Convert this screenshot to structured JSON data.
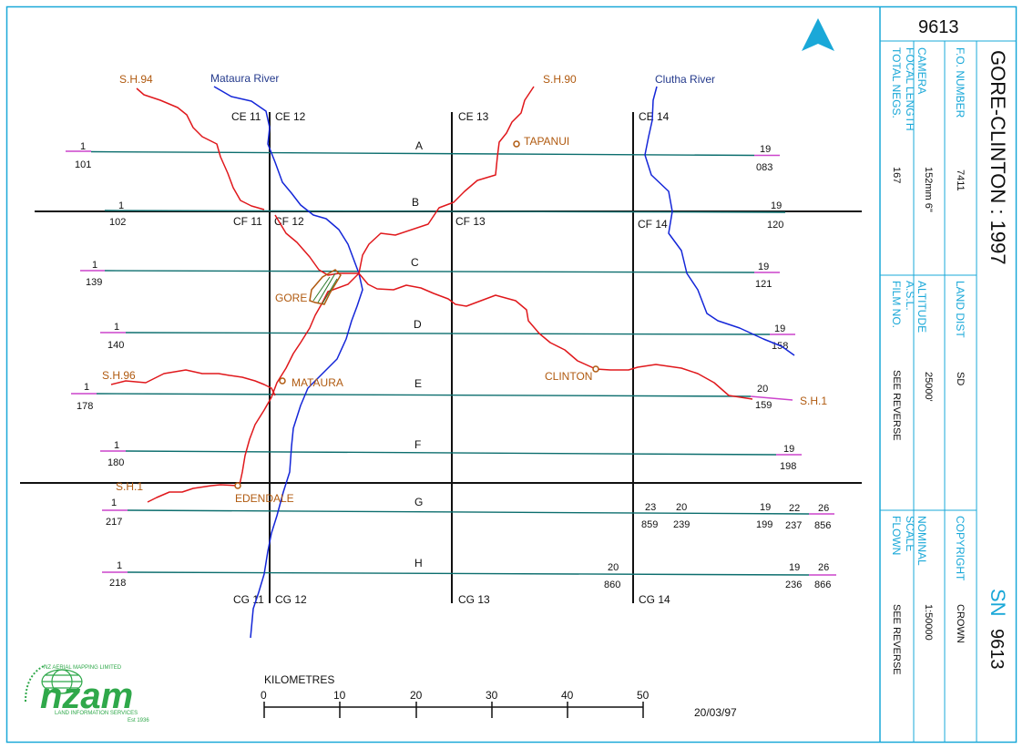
{
  "sheet_number": "9613",
  "title": "GORE-CLINTON : 1997",
  "sn_code": "SN",
  "sn_number": "9613",
  "info_fields": [
    {
      "key": "total_negs",
      "label": "TOTAL NEGS.",
      "value": "167"
    },
    {
      "key": "camera_focal_length",
      "label": "CAMERA FOCAL LENGTH",
      "value": "152mm 6\""
    },
    {
      "key": "fo_number",
      "label": "F.O. NUMBER",
      "value": "7411"
    },
    {
      "key": "film_no",
      "label": "FILM NO.",
      "value": "SEE REVERSE"
    },
    {
      "key": "altitude",
      "label": "ALTITUDE A.S.L.",
      "value": "25000'"
    },
    {
      "key": "land_dist",
      "label": "LAND DIST",
      "value": "SD"
    },
    {
      "key": "flown",
      "label": "FLOWN",
      "value": "SEE REVERSE"
    },
    {
      "key": "nominal_scale",
      "label": "NOMINAL SCALE",
      "value": "1:50000"
    },
    {
      "key": "copyright",
      "label": "COPYRIGHT",
      "value": "CROWN"
    }
  ],
  "north": "N",
  "scale_bar": {
    "label": "KILOMETRES",
    "ticks": [
      "0",
      "10",
      "20",
      "30",
      "40",
      "50"
    ]
  },
  "date": "20/03/97",
  "logo": {
    "word": "nzam",
    "subtitle": "LAND INFORMATION SERVICES",
    "arc_text": "NZ AERIAL MAPPING LIMITED",
    "est": "Est 1936"
  },
  "grid_labels": {
    "top": [
      "CE 11",
      "CE 12",
      "CE 13",
      "CE 14"
    ],
    "middle": [
      "CF 11",
      "CF 12",
      "CF 13",
      "CF 14"
    ],
    "bottom": [
      "CG 11",
      "CG 12",
      "CG 13",
      "CG 14"
    ]
  },
  "strips": [
    {
      "letter": "A",
      "ends": [
        {
          "top": "1",
          "bottom": "101"
        },
        {
          "top": "19",
          "bottom": "083"
        }
      ]
    },
    {
      "letter": "B",
      "ends": [
        {
          "top": "1",
          "bottom": "102"
        },
        {
          "top": "19",
          "bottom": "120"
        }
      ]
    },
    {
      "letter": "C",
      "ends": [
        {
          "top": "1",
          "bottom": "139"
        },
        {
          "top": "19",
          "bottom": "121"
        }
      ]
    },
    {
      "letter": "D",
      "ends": [
        {
          "top": "1",
          "bottom": "140"
        },
        {
          "top": "19",
          "bottom": "158"
        }
      ]
    },
    {
      "letter": "E",
      "ends": [
        {
          "top": "1",
          "bottom": "178"
        },
        {
          "top": "20",
          "bottom": "159"
        }
      ]
    },
    {
      "letter": "F",
      "ends": [
        {
          "top": "1",
          "bottom": "180"
        },
        {
          "top": "19",
          "bottom": "198"
        }
      ]
    },
    {
      "letter": "G",
      "ends": [
        {
          "top": "1",
          "bottom": "217"
        },
        {
          "top": "23",
          "bottom": "859"
        },
        {
          "top": "20",
          "bottom": "239"
        },
        {
          "top": "19",
          "bottom": "199"
        },
        {
          "top": "22",
          "bottom": "237"
        },
        {
          "top": "26",
          "bottom": "856"
        }
      ]
    },
    {
      "letter": "H",
      "ends": [
        {
          "top": "1",
          "bottom": "218"
        },
        {
          "top": "20",
          "bottom": "860"
        },
        {
          "top": "19",
          "bottom": "236"
        },
        {
          "top": "26",
          "bottom": "866"
        }
      ]
    }
  ],
  "places": [
    "GORE",
    "MATAURA",
    "CLINTON",
    "EDENDALE",
    "TAPANUI"
  ],
  "roads": [
    "S.H.94",
    "S.H.90",
    "S.H.96",
    "S.H.1",
    "S.H.1"
  ],
  "rivers": [
    "Mataura River",
    "Clutha River"
  ],
  "colors": {
    "frame": "#1aa8d8",
    "flight_line": "#0c6e6e",
    "flight_line_end": "#cc44cc",
    "road": "#e0181c",
    "river": "#1426d8",
    "place": "#b05a10",
    "grid": "#111111",
    "north_arrow": "#1aa8d8",
    "logo": "#2fa84a"
  }
}
